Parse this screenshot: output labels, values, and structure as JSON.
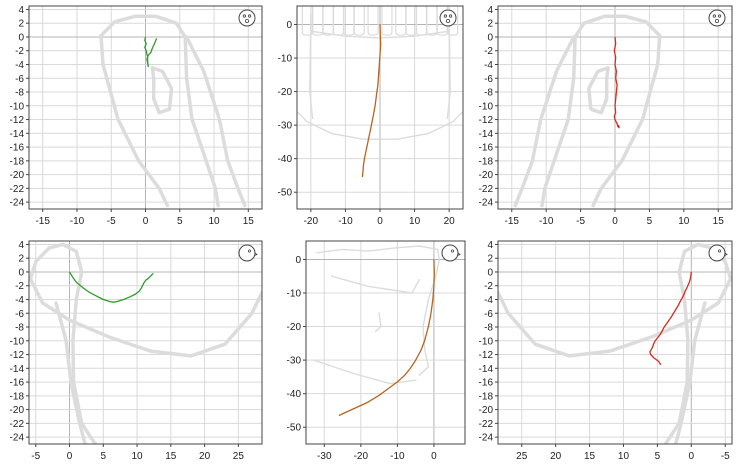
{
  "colors": {
    "frame": "#444444",
    "grid": "#d9d9d9",
    "axis_zero": "#b4b4b4",
    "outline": "#dcdcdc",
    "green": "#2e9c2e",
    "orange": "#b8641e",
    "red": "#d62a1e",
    "icon": "#444444"
  },
  "chart_data": [
    {
      "type": "line",
      "id": "frontal-left",
      "icon": "face-front-icon",
      "xlim": [
        -17,
        17
      ],
      "ylim": [
        -25,
        4.5
      ],
      "xticks": [
        -15,
        -10,
        -5,
        0,
        5,
        10,
        15
      ],
      "yticks": [
        4,
        2,
        0,
        -2,
        -4,
        -6,
        -8,
        -10,
        -12,
        -14,
        -16,
        -18,
        -20,
        -22,
        -24
      ],
      "series": [
        {
          "color_key": "green",
          "x": [
            0,
            -0.1,
            0.1,
            -0.1,
            0.1,
            0.2,
            0.3,
            0.3,
            0.4,
            0.2,
            0.4,
            0.8,
            1.0,
            1.3,
            1.5,
            1.6
          ],
          "y": [
            0,
            -0.5,
            -1.0,
            -1.5,
            -2.0,
            -2.5,
            -2.9,
            -3.5,
            -4.3,
            -3.2,
            -2.7,
            -2.2,
            -1.6,
            -1.0,
            -0.5,
            -0.2
          ]
        }
      ],
      "outline": {
        "mandible": [
          [
            -6.5,
            0.2
          ],
          [
            -4.5,
            2.2
          ],
          [
            -1.5,
            3.0
          ],
          [
            1.5,
            3.0
          ],
          [
            4.5,
            2.0
          ],
          [
            5.8,
            0
          ],
          [
            6.0,
            -6
          ],
          [
            6.8,
            -12
          ],
          [
            8.5,
            -17
          ],
          [
            10.2,
            -22
          ],
          [
            10.6,
            -24.5
          ]
        ],
        "ramus": [
          [
            -6.5,
            0.2
          ],
          [
            -6.2,
            -4
          ],
          [
            -4.0,
            -12
          ],
          [
            -1.0,
            -18
          ],
          [
            2.0,
            -22
          ],
          [
            3.2,
            -24.5
          ]
        ],
        "condyle": [
          [
            1.0,
            -4.5
          ],
          [
            2.5,
            -5
          ],
          [
            3.8,
            -7.5
          ],
          [
            3.5,
            -10.5
          ],
          [
            2.0,
            -11.0
          ],
          [
            1.2,
            -9
          ],
          [
            1.2,
            -6
          ],
          [
            1.0,
            -4.5
          ]
        ],
        "back": [
          [
            6.0,
            0
          ],
          [
            8.5,
            -5
          ],
          [
            10.8,
            -12
          ],
          [
            12.0,
            -18
          ],
          [
            13.5,
            -22
          ],
          [
            14.5,
            -24.5
          ]
        ]
      }
    },
    {
      "type": "line",
      "id": "frontal-center",
      "icon": "face-front-icon",
      "xlim": [
        -24,
        24
      ],
      "ylim": [
        -55,
        5.5
      ],
      "xticks": [
        -20,
        -10,
        0,
        10,
        20
      ],
      "yticks": [
        0,
        -10,
        -20,
        -30,
        -40,
        -50
      ],
      "series": [
        {
          "color_key": "orange",
          "x": [
            0,
            0.1,
            0.2,
            0.0,
            -0.2,
            -0.4,
            -0.6,
            -1.0,
            -1.4,
            -1.9,
            -2.5,
            -3.1,
            -3.7,
            -4.1,
            -4.5,
            -4.8,
            -4.9,
            -5.0,
            -5.1
          ],
          "y": [
            0,
            -3,
            -6,
            -9,
            -12,
            -15,
            -18,
            -21,
            -24,
            -27,
            -30,
            -33,
            -36,
            -38,
            -40,
            -42,
            -43.5,
            -44.5,
            -45.5
          ]
        }
      ],
      "outline": {
        "jaw": [
          [
            -24,
            -26
          ],
          [
            -21,
            -29
          ],
          [
            -14,
            -32.5
          ],
          [
            -5,
            -34.2
          ],
          [
            5,
            -34.2
          ],
          [
            14,
            -32.5
          ],
          [
            21,
            -29
          ],
          [
            24,
            -26
          ]
        ],
        "side_left": [
          [
            -20,
            3
          ],
          [
            -20.3,
            -20
          ],
          [
            -19.5,
            -28
          ]
        ],
        "side_right": [
          [
            20,
            3
          ],
          [
            20.3,
            -20
          ],
          [
            19.5,
            -28
          ]
        ],
        "lower_arc": [
          [
            -20,
            -2
          ],
          [
            -10,
            -3.5
          ],
          [
            0,
            -4
          ],
          [
            10,
            -3.5
          ],
          [
            20,
            -2
          ]
        ],
        "teeth_centers": [
          -21,
          -18,
          -15,
          -12,
          -9,
          -6,
          -2,
          2,
          6,
          9,
          12,
          15,
          18,
          21
        ]
      }
    },
    {
      "type": "line",
      "id": "frontal-right",
      "icon": "face-front-icon",
      "xlim": [
        -17,
        17
      ],
      "ylim": [
        -25,
        4.5
      ],
      "xticks": [
        -15,
        -10,
        -5,
        0,
        5,
        10,
        15
      ],
      "yticks": [
        4,
        2,
        0,
        -2,
        -4,
        -6,
        -8,
        -10,
        -12,
        -14,
        -16,
        -18,
        -20,
        -22,
        -24
      ],
      "series": [
        {
          "color_key": "red",
          "x": [
            0,
            0.1,
            -0.1,
            0.1,
            0.0,
            0.2,
            0.1,
            0.3,
            0.2,
            0.1,
            0.0,
            0.1,
            -0.1,
            0.0,
            0.3,
            0.4,
            0.6,
            0.5
          ],
          "y": [
            0,
            -1,
            -2,
            -3,
            -4,
            -5,
            -6,
            -7,
            -8,
            -9,
            -10,
            -11,
            -11.5,
            -12,
            -12.6,
            -13.0,
            -13.2,
            -12.8
          ]
        }
      ],
      "outline": {
        "mandible": [
          [
            6.5,
            0.2
          ],
          [
            4.5,
            2.2
          ],
          [
            1.5,
            3.0
          ],
          [
            -1.5,
            3.0
          ],
          [
            -4.5,
            2.0
          ],
          [
            -5.8,
            0
          ],
          [
            -6.0,
            -6
          ],
          [
            -6.8,
            -12
          ],
          [
            -8.5,
            -17
          ],
          [
            -10.2,
            -22
          ],
          [
            -10.6,
            -24.5
          ]
        ],
        "ramus": [
          [
            6.5,
            0.2
          ],
          [
            6.2,
            -4
          ],
          [
            4.0,
            -12
          ],
          [
            1.0,
            -18
          ],
          [
            -2.0,
            -22
          ],
          [
            -3.2,
            -24.5
          ]
        ],
        "condyle": [
          [
            -1.0,
            -4.5
          ],
          [
            -2.5,
            -5
          ],
          [
            -3.8,
            -7.5
          ],
          [
            -3.5,
            -10.5
          ],
          [
            -2.0,
            -11.0
          ],
          [
            -1.2,
            -9
          ],
          [
            -1.2,
            -6
          ],
          [
            -1.0,
            -4.5
          ]
        ],
        "back": [
          [
            -6.0,
            0
          ],
          [
            -8.5,
            -5
          ],
          [
            -10.8,
            -12
          ],
          [
            -12.0,
            -18
          ],
          [
            -13.5,
            -22
          ],
          [
            -14.5,
            -24.5
          ]
        ]
      }
    },
    {
      "type": "line",
      "id": "sagittal-left",
      "icon": "face-profile-icon",
      "xlim": [
        -6,
        28.5
      ],
      "ylim": [
        -25,
        4.5
      ],
      "xticks": [
        -5,
        0,
        5,
        10,
        15,
        20,
        25
      ],
      "yticks": [
        4,
        2,
        0,
        -2,
        -4,
        -6,
        -8,
        -10,
        -12,
        -14,
        -16,
        -18,
        -20,
        -22,
        -24
      ],
      "series": [
        {
          "color_key": "green",
          "x": [
            0,
            0.5,
            1.0,
            2.0,
            3.0,
            4.0,
            5.0,
            6.0,
            6.5,
            7.0,
            8.0,
            9.0,
            9.8,
            10.3,
            10.6,
            10.8,
            11.0,
            11.3,
            11.7,
            12.1,
            12.4
          ],
          "y": [
            0,
            -0.8,
            -1.5,
            -2.3,
            -3.0,
            -3.5,
            -4.0,
            -4.3,
            -4.4,
            -4.3,
            -4.0,
            -3.6,
            -3.2,
            -2.8,
            -2.4,
            -2.0,
            -1.6,
            -1.2,
            -0.9,
            -0.5,
            -0.2
          ]
        }
      ],
      "outline": {
        "ramus": [
          [
            -5.8,
            -1
          ],
          [
            -5.0,
            1.5
          ],
          [
            -3.0,
            3.5
          ],
          [
            -1.0,
            4.0
          ],
          [
            1.0,
            3.0
          ],
          [
            1.8,
            0
          ],
          [
            1.0,
            -4
          ],
          [
            0.5,
            -10
          ],
          [
            0.6,
            -16
          ],
          [
            1.8,
            -22
          ],
          [
            3.8,
            -25
          ]
        ],
        "body": [
          [
            -5.8,
            -1
          ],
          [
            -4.0,
            -4.5
          ],
          [
            0.0,
            -7.0
          ],
          [
            6.0,
            -9.5
          ],
          [
            12.0,
            -11.5
          ],
          [
            18.0,
            -12.2
          ],
          [
            23.0,
            -10.5
          ],
          [
            27.0,
            -6.0
          ],
          [
            28.5,
            -3.0
          ]
        ],
        "edge": [
          [
            -2.0,
            -4.5
          ],
          [
            -0.5,
            -10
          ],
          [
            0.2,
            -16
          ],
          [
            1.5,
            -22
          ],
          [
            2.3,
            -25
          ]
        ]
      }
    },
    {
      "type": "line",
      "id": "sagittal-center",
      "icon": "face-profile-icon",
      "xlim": [
        -35,
        8.5
      ],
      "ylim": [
        -55,
        5.5
      ],
      "xticks": [
        -30,
        -20,
        -10,
        0
      ],
      "yticks": [
        0,
        -10,
        -20,
        -30,
        -40,
        -50
      ],
      "series": [
        {
          "color_key": "orange",
          "x": [
            0,
            0.1,
            0.0,
            -0.3,
            -0.8,
            -1.5,
            -2.5,
            -3.5,
            -5.0,
            -6.5,
            -8.0,
            -10.0,
            -12.5,
            -15.0,
            -18.0,
            -21.0,
            -24.0,
            -26.0
          ],
          "y": [
            0,
            -4,
            -8,
            -12,
            -16,
            -20,
            -24,
            -27,
            -30,
            -32.5,
            -34.5,
            -36.5,
            -38.5,
            -40.5,
            -42.5,
            -44.0,
            -45.5,
            -46.5
          ]
        }
      ],
      "outline": {
        "profile": [
          [
            -32,
            2
          ],
          [
            -25,
            3
          ],
          [
            -18,
            2.5
          ],
          [
            -10,
            3.5
          ],
          [
            -4,
            4
          ],
          [
            1.0,
            3.0
          ],
          [
            1.5,
            0
          ],
          [
            0.5,
            -5
          ],
          [
            -1.5,
            -12
          ],
          [
            -3.0,
            -20
          ],
          [
            -2.5,
            -27
          ],
          [
            -1.5,
            -32
          ],
          [
            -4.0,
            -34.5
          ]
        ],
        "chin": [
          [
            -33,
            -30
          ],
          [
            -22,
            -34
          ],
          [
            -12,
            -37
          ],
          [
            -5,
            -36
          ]
        ],
        "inner": [
          [
            -15,
            -16
          ],
          [
            -14.5,
            -20
          ],
          [
            -16,
            -21.5
          ]
        ],
        "upper": [
          [
            -28,
            -5
          ],
          [
            -18,
            -8
          ],
          [
            -6,
            -10
          ],
          [
            -4,
            -6
          ]
        ]
      }
    },
    {
      "type": "line",
      "id": "sagittal-right",
      "icon": "face-profile-icon",
      "xlim": [
        -6,
        28.5
      ],
      "ylim": [
        -25,
        4.5
      ],
      "xticks": [
        25,
        20,
        15,
        10,
        5,
        0,
        -5
      ],
      "x_reversed": true,
      "yticks": [
        4,
        2,
        0,
        -2,
        -4,
        -6,
        -8,
        -10,
        -12,
        -14,
        -16,
        -18,
        -20,
        -22,
        -24
      ],
      "series": [
        {
          "color_key": "red",
          "x": [
            0,
            0.1,
            0.3,
            0.6,
            0.9,
            1.2,
            1.6,
            2.0,
            2.5,
            3.0,
            3.5,
            4.0,
            4.3,
            4.6,
            5.0,
            5.4,
            5.6,
            5.8,
            6.1,
            6.0,
            5.5,
            4.8,
            4.5
          ],
          "y": [
            0,
            -0.8,
            -1.5,
            -2.2,
            -2.8,
            -3.5,
            -4.2,
            -5.0,
            -5.8,
            -6.6,
            -7.3,
            -8.0,
            -8.6,
            -9.1,
            -9.6,
            -10.1,
            -10.6,
            -11.1,
            -11.6,
            -12.0,
            -12.5,
            -13.0,
            -13.5
          ]
        }
      ],
      "outline": {
        "ramus": [
          [
            -5.8,
            -1
          ],
          [
            -5.0,
            1.5
          ],
          [
            -3.0,
            3.5
          ],
          [
            -1.0,
            4.0
          ],
          [
            1.0,
            3.0
          ],
          [
            1.8,
            0
          ],
          [
            1.0,
            -4
          ],
          [
            0.5,
            -10
          ],
          [
            0.6,
            -16
          ],
          [
            1.8,
            -22
          ],
          [
            3.8,
            -25
          ]
        ],
        "body": [
          [
            -5.8,
            -1
          ],
          [
            -4.0,
            -4.5
          ],
          [
            0.0,
            -7.0
          ],
          [
            6.0,
            -9.5
          ],
          [
            12.0,
            -11.5
          ],
          [
            18.0,
            -12.2
          ],
          [
            23.0,
            -10.5
          ],
          [
            27.0,
            -6.0
          ],
          [
            28.5,
            -3.0
          ]
        ],
        "edge": [
          [
            -2.0,
            -4.5
          ],
          [
            -0.5,
            -10
          ],
          [
            0.2,
            -16
          ],
          [
            1.5,
            -22
          ],
          [
            2.3,
            -25
          ]
        ]
      }
    }
  ]
}
